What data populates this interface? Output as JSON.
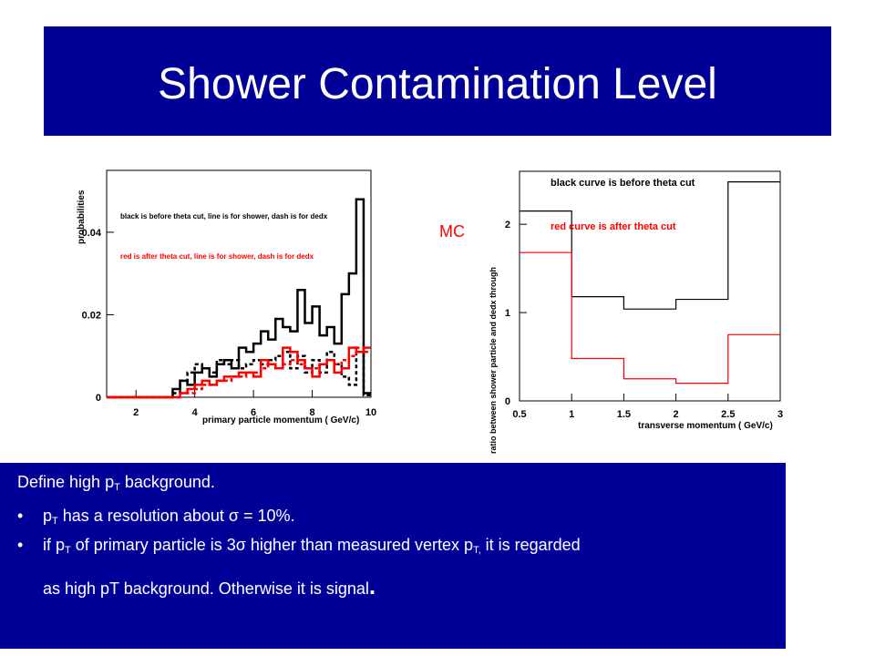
{
  "slide": {
    "title": "Shower Contamination Level",
    "mc_label": "MC",
    "colors": {
      "title_bg": "#000099",
      "text_box_bg": "#000099",
      "text": "#ffffff",
      "accent_red": "#ff0000"
    }
  },
  "text_box": {
    "line1_pre": "Define high p",
    "line1_sub": "T",
    "line1_post": " background.",
    "bullet1_pre": "p",
    "bullet1_sub": "T",
    "bullet1_post": " has a resolution about σ  = 10%.",
    "bullet2_a": "if p",
    "bullet2_sub1": "T",
    "bullet2_b": " of primary particle is 3σ higher than measured vertex p",
    "bullet2_sub2": "T,",
    "bullet2_c": " it is regarded",
    "bullet2_d": "as high pT background. Otherwise it is signal",
    "bullet2_end": ".",
    "bullet_symbol": "•"
  },
  "chart_data": [
    {
      "type": "line",
      "style": "step histogram",
      "xlabel": "primary particle momentum ( GeV/c)",
      "ylabel": "probabilities",
      "xlim": [
        1,
        10
      ],
      "ylim": [
        0,
        0.055
      ],
      "x_ticks": [
        "2",
        "4",
        "6",
        "8",
        "10"
      ],
      "y_ticks": [
        "0",
        "0.02",
        "0.04"
      ],
      "annotations": [
        "black is before theta cut, line is for shower, dash is for dedx",
        "red is after theta cut, line is for shower, dash is for dedx"
      ],
      "bin_width": 0.25,
      "x": [
        1.0,
        1.25,
        1.5,
        1.75,
        2.0,
        2.25,
        2.5,
        2.75,
        3.0,
        3.25,
        3.5,
        3.75,
        4.0,
        4.25,
        4.5,
        4.75,
        5.0,
        5.25,
        5.5,
        5.75,
        6.0,
        6.25,
        6.5,
        6.75,
        7.0,
        7.25,
        7.5,
        7.75,
        8.0,
        8.25,
        8.5,
        8.75,
        9.0,
        9.25,
        9.5,
        9.75
      ],
      "series": [
        {
          "color": "#000000",
          "dash": "solid",
          "values": [
            0,
            0,
            0,
            0,
            0,
            0,
            0,
            0,
            0,
            0.002,
            0.004,
            0.003,
            0.006,
            0.007,
            0.005,
            0.008,
            0.009,
            0.007,
            0.012,
            0.011,
            0.013,
            0.016,
            0.014,
            0.019,
            0.017,
            0.016,
            0.026,
            0.018,
            0.022,
            0.015,
            0.017,
            0.013,
            0.025,
            0.03,
            0.048,
            0.001
          ]
        },
        {
          "color": "#000000",
          "dash": "dashed",
          "values": [
            0,
            0,
            0,
            0,
            0,
            0,
            0,
            0,
            0,
            0.001,
            0.004,
            0.006,
            0.008,
            0.007,
            0.006,
            0.009,
            0.008,
            0.009,
            0.007,
            0.008,
            0.009,
            0.008,
            0.009,
            0.01,
            0.011,
            0.007,
            0.01,
            0.006,
            0.009,
            0.006,
            0.011,
            0.008,
            0.005,
            0.003,
            0.011,
            0.0005
          ]
        },
        {
          "color": "#ff0000",
          "dash": "solid",
          "values": [
            0,
            0,
            0,
            0,
            0,
            0,
            0,
            0,
            0,
            0,
            0.001,
            0.002,
            0.003,
            0.004,
            0.003,
            0.004,
            0.005,
            0.005,
            0.006,
            0.006,
            0.005,
            0.009,
            0.008,
            0.007,
            0.012,
            0.011,
            0.009,
            0.007,
            0.005,
            0.008,
            0.009,
            0.006,
            0.007,
            0.012,
            0.011,
            0.012
          ]
        },
        {
          "color": "#ff0000",
          "dash": "dashed",
          "values": [
            0,
            0,
            0,
            0,
            0,
            0,
            0,
            0,
            0,
            0,
            0.001,
            0.001,
            0.002,
            0.003,
            0.003,
            0.004,
            0.004,
            0.005,
            0.005,
            0.006,
            0.006,
            0.007,
            0.008,
            0.007,
            0.008,
            0.009,
            0.008,
            0.007,
            0.007,
            0.008,
            0.009,
            0.008,
            0.009,
            0.01,
            0.012,
            0.011
          ]
        }
      ]
    },
    {
      "type": "line",
      "style": "step histogram",
      "xlabel": "transverse momentum ( GeV/c)",
      "ylabel": "ratio between shower particle and dedx through",
      "xlim": [
        0.5,
        3
      ],
      "ylim": [
        0,
        2.6
      ],
      "x_ticks": [
        "0.5",
        "1",
        "1.5",
        "2",
        "2.5",
        "3"
      ],
      "y_ticks": [
        "0",
        "1",
        "2"
      ],
      "annotations": [
        "black curve is before theta cut",
        "red curve is after theta cut"
      ],
      "bin_edges": [
        0.5,
        1.0,
        1.5,
        2.0,
        2.5,
        3.0
      ],
      "series": [
        {
          "color": "#000000",
          "values": [
            2.15,
            1.18,
            1.04,
            1.15,
            2.48
          ]
        },
        {
          "color": "#ff0000",
          "values": [
            1.68,
            0.48,
            0.25,
            0.2,
            0.75
          ]
        }
      ]
    }
  ]
}
